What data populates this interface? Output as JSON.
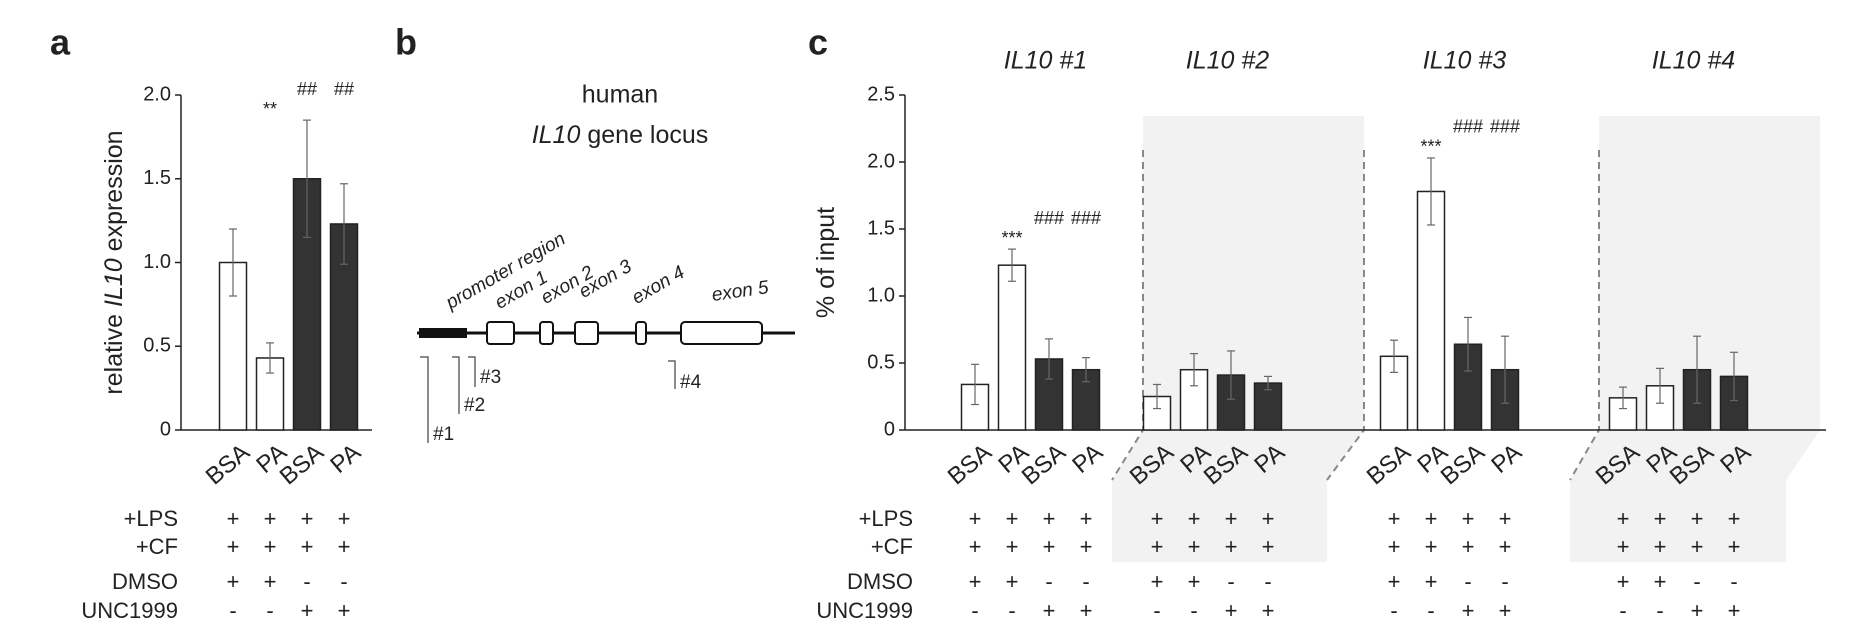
{
  "chart_data": [
    {
      "type": "bar",
      "label": "a",
      "ylabel": [
        "relative",
        "IL10",
        "expression"
      ],
      "categories": [
        "BSA",
        "PA",
        "BSA",
        "PA"
      ],
      "colors": [
        "#ffffff",
        "#ffffff",
        "#333333",
        "#333333"
      ],
      "ylim": [
        0,
        2
      ],
      "yticks": [
        0,
        0.5,
        {
          "value": 1,
          "label": "1.0"
        },
        1.5,
        {
          "value": 2,
          "label": "2.0"
        }
      ],
      "groups": [
        {
          "values": [
            1.0,
            0.43,
            1.5,
            1.23
          ],
          "errors": [
            0.2,
            0.09,
            0.35,
            0.24
          ],
          "annotations": [
            {
              "index": 1,
              "text": "**"
            },
            {
              "index": 2,
              "text": "##"
            },
            {
              "index": 3,
              "text": "##"
            }
          ]
        }
      ]
    },
    {
      "type": "bar",
      "label": "c",
      "ylabel": [
        "% of input"
      ],
      "categories": [
        "BSA",
        "PA",
        "BSA",
        "PA"
      ],
      "colors": [
        "#ffffff",
        "#ffffff",
        "#333333",
        "#333333"
      ],
      "ylim": [
        0,
        2.5
      ],
      "yticks": [
        0,
        0.5,
        {
          "value": 1,
          "label": "1.0"
        },
        1.5,
        {
          "value": 2,
          "label": "2.0"
        },
        2.5
      ],
      "groups": [
        {
          "title": "IL10 #1",
          "values": [
            0.34,
            1.23,
            0.53,
            0.45
          ],
          "errors": [
            0.15,
            0.12,
            0.15,
            0.09
          ],
          "annotations": [
            {
              "index": 1,
              "text": "***"
            },
            {
              "index": 2,
              "text": "###"
            },
            {
              "index": 3,
              "text": "###"
            }
          ]
        },
        {
          "title": "IL10 #2",
          "values": [
            0.25,
            0.45,
            0.41,
            0.35
          ],
          "errors": [
            0.09,
            0.12,
            0.18,
            0.05
          ],
          "annotations": []
        },
        {
          "title": "IL10 #3",
          "values": [
            0.55,
            1.78,
            0.64,
            0.45
          ],
          "errors": [
            0.12,
            0.25,
            0.2,
            0.25
          ],
          "annotations": [
            {
              "index": 1,
              "text": "***"
            },
            {
              "index": 2,
              "text": "###"
            },
            {
              "index": 3,
              "text": "###"
            }
          ]
        },
        {
          "title": "IL10 #4",
          "values": [
            0.24,
            0.33,
            0.45,
            0.4
          ],
          "errors": [
            0.08,
            0.13,
            0.25,
            0.18
          ],
          "annotations": []
        }
      ]
    }
  ],
  "diagram": {
    "label": "b",
    "title": [
      "human",
      "IL10",
      "gene locus"
    ],
    "regions": [
      "promoter region",
      "exon 1",
      "exon 2",
      "exon 3",
      "exon 4",
      "exon 5"
    ],
    "primers": [
      "#1",
      "#2",
      "#3",
      "#4"
    ]
  },
  "treatments": [
    {
      "label": "+LPS",
      "signs": [
        "+",
        "+",
        "+",
        "+"
      ]
    },
    {
      "label": "+CF",
      "signs": [
        "+",
        "+",
        "+",
        "+"
      ]
    },
    {
      "label": "DMSO",
      "signs": [
        "+",
        "+",
        "-",
        "-"
      ]
    },
    {
      "label": "UNC1999",
      "signs": [
        "-",
        "-",
        "+",
        "+"
      ]
    }
  ]
}
